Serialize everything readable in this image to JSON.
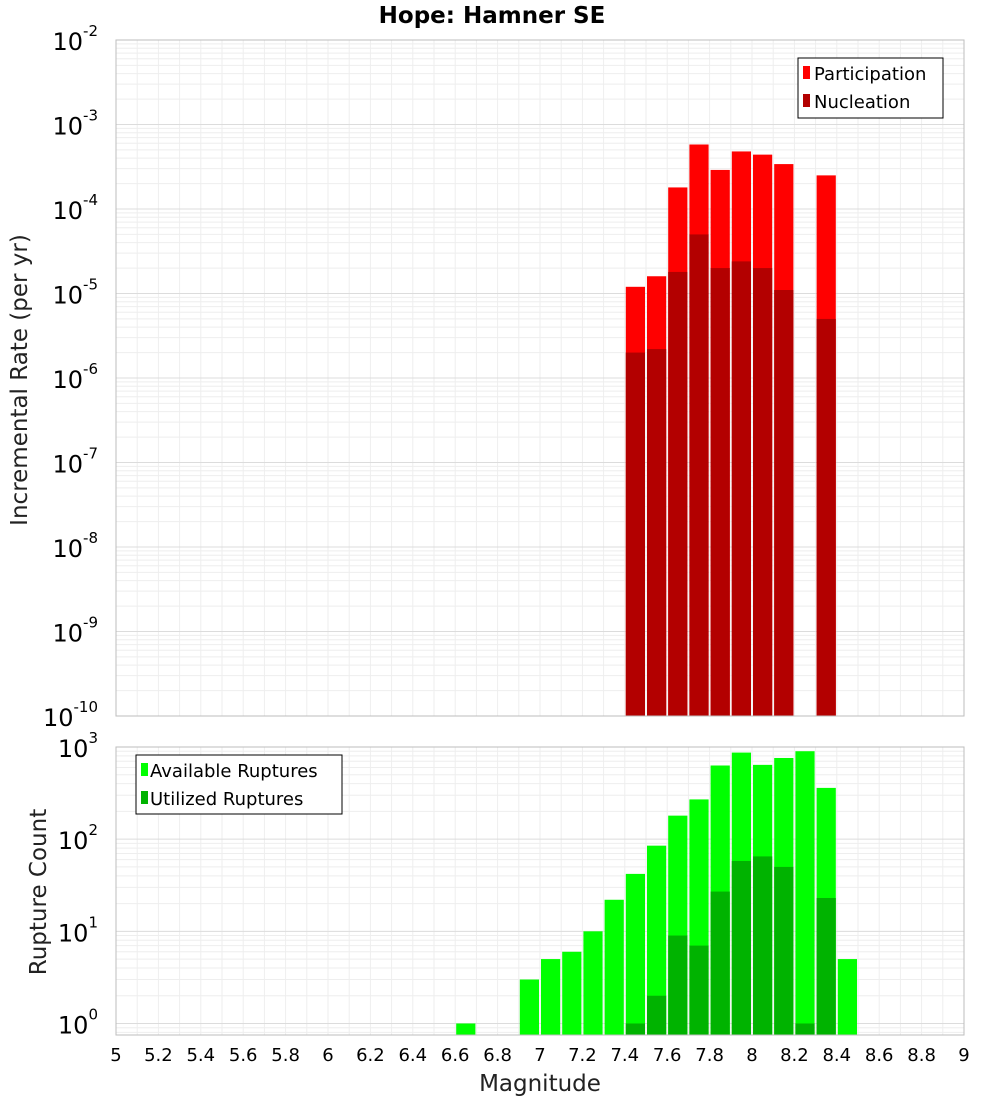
{
  "chart_data": [
    {
      "type": "bar",
      "title": "Hope: Hamner SE",
      "xlabel": "Magnitude",
      "ylabel": "Incremental Rate (per yr)",
      "yscale": "log",
      "xlim": [
        5,
        9
      ],
      "ylim": [
        1e-10,
        0.01
      ],
      "grid": true,
      "legend_position": "top-right",
      "x_ticks": [
        "5",
        "5.2",
        "5.4",
        "5.6",
        "5.8",
        "6",
        "6.2",
        "6.4",
        "6.6",
        "6.8",
        "7",
        "7.2",
        "7.4",
        "7.6",
        "7.8",
        "8",
        "8.2",
        "8.4",
        "8.6",
        "8.8",
        "9"
      ],
      "y_tick_exponents": [
        "-10",
        "-9",
        "-8",
        "-7",
        "-6",
        "-5",
        "-4",
        "-3",
        "-2"
      ],
      "y_tick_base": "10",
      "series": [
        {
          "name": "Participation",
          "color": "#ff0000",
          "points": [
            {
              "x": 7.45,
              "y": 1.2e-05
            },
            {
              "x": 7.55,
              "y": 1.6e-05
            },
            {
              "x": 7.65,
              "y": 0.00018
            },
            {
              "x": 7.75,
              "y": 0.00058
            },
            {
              "x": 7.85,
              "y": 0.00029
            },
            {
              "x": 7.95,
              "y": 0.00048
            },
            {
              "x": 8.05,
              "y": 0.00044
            },
            {
              "x": 8.15,
              "y": 0.00034
            },
            {
              "x": 8.35,
              "y": 0.00025
            }
          ]
        },
        {
          "name": "Nucleation",
          "color": "#b30000",
          "points": [
            {
              "x": 7.45,
              "y": 2e-06
            },
            {
              "x": 7.55,
              "y": 2.2e-06
            },
            {
              "x": 7.65,
              "y": 1.8e-05
            },
            {
              "x": 7.75,
              "y": 5e-05
            },
            {
              "x": 7.85,
              "y": 2e-05
            },
            {
              "x": 7.95,
              "y": 2.4e-05
            },
            {
              "x": 8.05,
              "y": 2e-05
            },
            {
              "x": 8.15,
              "y": 1.1e-05
            },
            {
              "x": 8.35,
              "y": 5e-06
            }
          ]
        }
      ]
    },
    {
      "type": "bar",
      "title": "",
      "xlabel": "Magnitude",
      "ylabel": "Rupture Count",
      "yscale": "log",
      "xlim": [
        5,
        9
      ],
      "ylim": [
        0.75,
        1000
      ],
      "grid": true,
      "legend_position": "top-left",
      "y_ticks": [
        1,
        10,
        100,
        1000
      ],
      "y_tick_exponents": [
        "0",
        "1",
        "2",
        "3"
      ],
      "y_tick_base": "10",
      "series": [
        {
          "name": "Available Ruptures",
          "color": "#00ff00",
          "points": [
            {
              "x": 6.65,
              "y": 1
            },
            {
              "x": 6.95,
              "y": 3
            },
            {
              "x": 7.05,
              "y": 5
            },
            {
              "x": 7.15,
              "y": 6
            },
            {
              "x": 7.25,
              "y": 10
            },
            {
              "x": 7.35,
              "y": 22
            },
            {
              "x": 7.45,
              "y": 42
            },
            {
              "x": 7.55,
              "y": 85
            },
            {
              "x": 7.65,
              "y": 180
            },
            {
              "x": 7.75,
              "y": 270
            },
            {
              "x": 7.85,
              "y": 630
            },
            {
              "x": 7.95,
              "y": 870
            },
            {
              "x": 8.05,
              "y": 640
            },
            {
              "x": 8.15,
              "y": 760
            },
            {
              "x": 8.25,
              "y": 900
            },
            {
              "x": 8.35,
              "y": 360
            },
            {
              "x": 8.45,
              "y": 5
            }
          ]
        },
        {
          "name": "Utilized Ruptures",
          "color": "#00b300",
          "points": [
            {
              "x": 7.45,
              "y": 1
            },
            {
              "x": 7.55,
              "y": 2
            },
            {
              "x": 7.65,
              "y": 9
            },
            {
              "x": 7.75,
              "y": 7
            },
            {
              "x": 7.85,
              "y": 27
            },
            {
              "x": 7.95,
              "y": 58
            },
            {
              "x": 8.05,
              "y": 65
            },
            {
              "x": 8.15,
              "y": 50
            },
            {
              "x": 8.25,
              "y": 1
            },
            {
              "x": 8.35,
              "y": 23
            }
          ]
        }
      ]
    }
  ]
}
